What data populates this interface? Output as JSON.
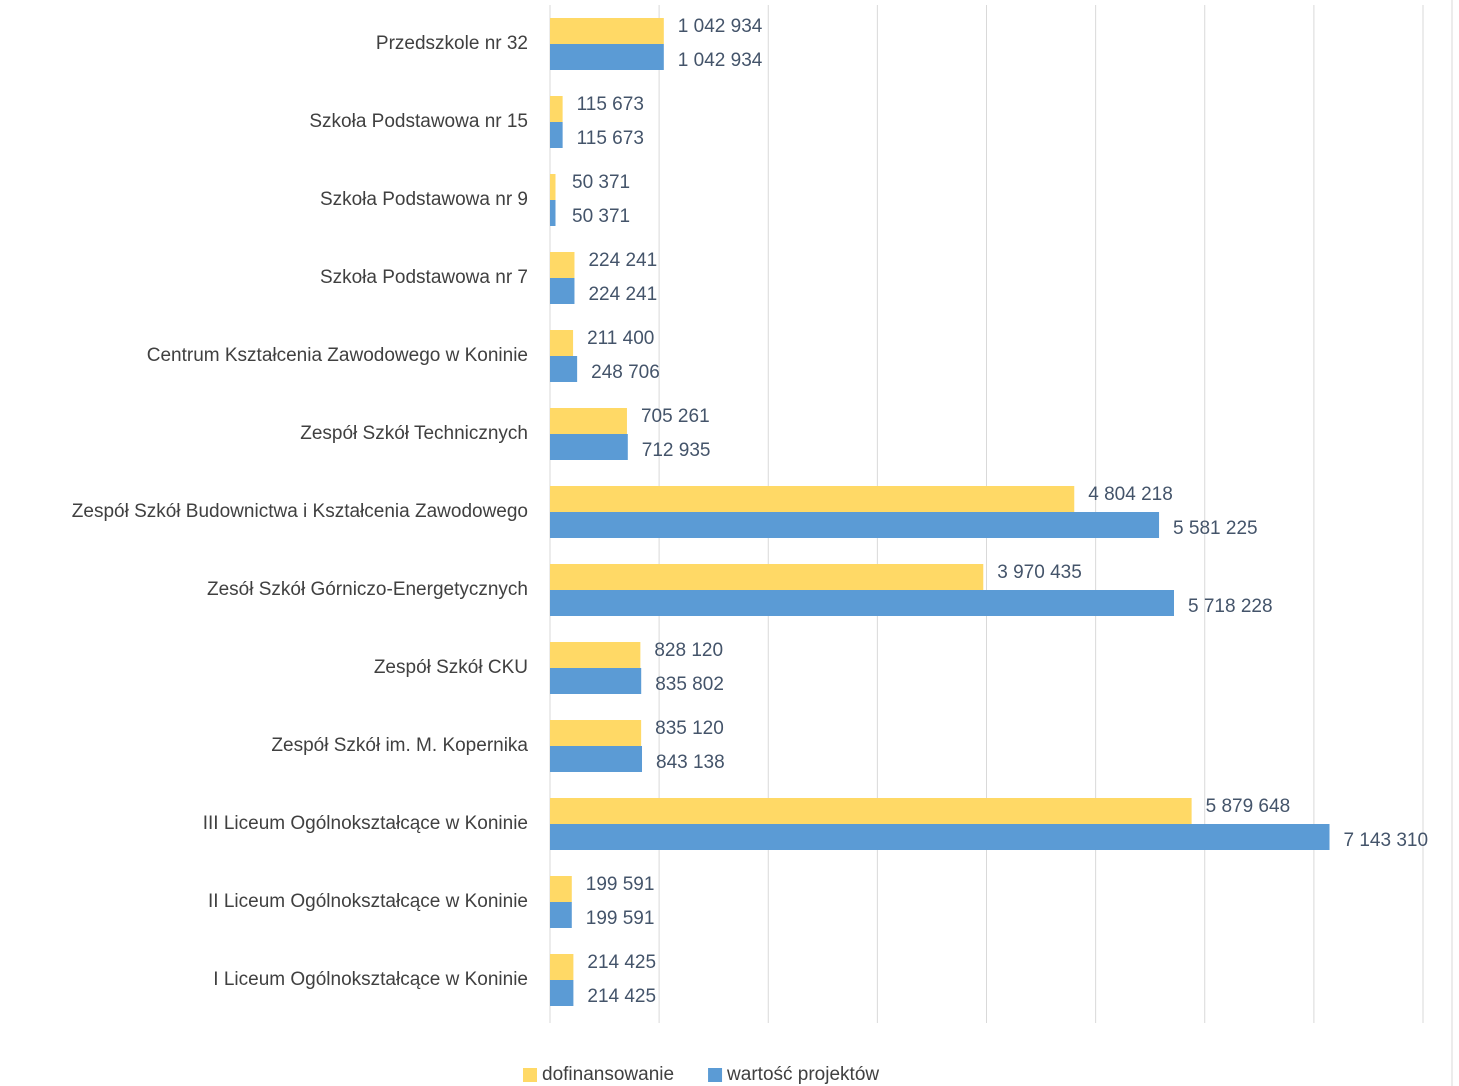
{
  "chart_data": {
    "type": "bar",
    "orientation": "horizontal",
    "categories": [
      "Przedszkole nr 32",
      "Szkoła Podstawowa nr 15",
      "Szkoła Podstawowa nr 9",
      "Szkoła Podstawowa nr 7",
      "Centrum Kształcenia Zawodowego w Koninie",
      "Zespół Szkół Technicznych",
      "Zespół Szkół Budownictwa i Kształcenia Zawodowego",
      "Zesół Szkół Górniczo-Energetycznych",
      "Zespół Szkół CKU",
      "Zespół Szkół im. M. Kopernika",
      "III Liceum Ogólnokształcące w Koninie",
      "II Liceum Ogólnokształcące w Koninie",
      "I Liceum Ogólnokształcące w Koninie"
    ],
    "series": [
      {
        "name": "dofinansowanie",
        "color": "#ffd966",
        "values": [
          1042934,
          115673,
          50371,
          224241,
          211400,
          705261,
          4804218,
          3970435,
          828120,
          835120,
          5879648,
          199591,
          214425
        ],
        "value_labels": [
          "1 042 934",
          "115 673",
          "50 371",
          "224 241",
          "211 400",
          "705 261",
          "4 804 218",
          "3 970 435",
          "828 120",
          "835 120",
          "5 879 648",
          "199 591",
          "214 425"
        ]
      },
      {
        "name": "wartość projektów",
        "color": "#5b9bd5",
        "values": [
          1042934,
          115673,
          50371,
          224241,
          248706,
          712935,
          5581225,
          5718228,
          835802,
          843138,
          7143310,
          199591,
          214425
        ],
        "value_labels": [
          "1 042 934",
          "115 673",
          "50 371",
          "224 241",
          "248 706",
          "712 935",
          "5 581 225",
          "5 718 228",
          "835 802",
          "843 138",
          "7 143 310",
          "199 591",
          "214 425"
        ]
      }
    ],
    "xlim": [
      0,
      8000000
    ],
    "xticks": [
      0,
      1000000,
      2000000,
      3000000,
      4000000,
      5000000,
      6000000,
      7000000,
      8000000
    ],
    "grid": true,
    "legend": "bottom"
  }
}
